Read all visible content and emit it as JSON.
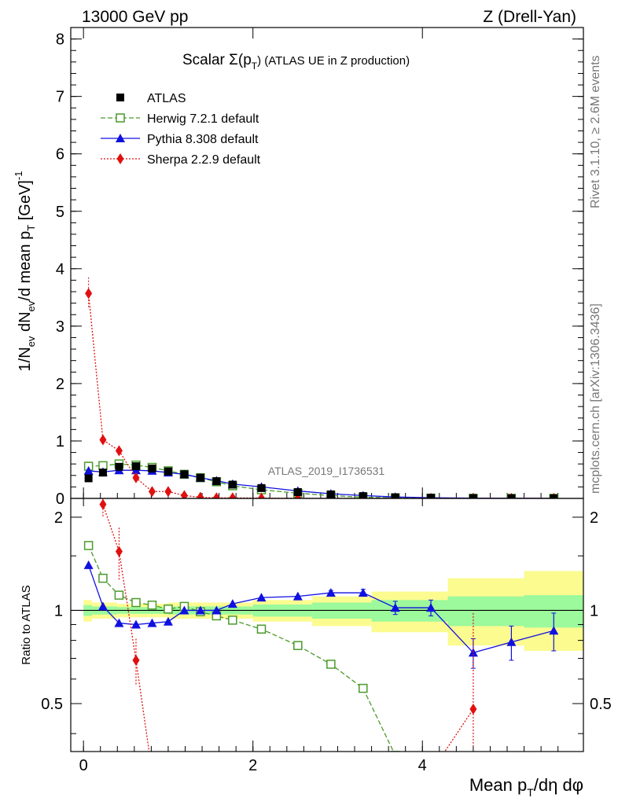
{
  "header": {
    "left": "13000 GeV pp",
    "right": "Z (Drell-Yan)"
  },
  "side": {
    "rivet": "Rivet 3.1.10, ≥ 2.6M events",
    "mcplots": "mcplots.cern.ch [arXiv:1306.3436]"
  },
  "plot_title": {
    "pre": "Scalar Σ(p",
    "sub": "T",
    "post": ") (ATLAS UE in Z production)"
  },
  "watermark": "ATLAS_2019_I1736531",
  "ylabel_main": "1/N_ev dN_ev/d mean p_T [GeV]^-1",
  "ylabel_ratio": "Ratio to ATLAS",
  "xlabel": "Mean p_T/dη dφ",
  "chart_data": {
    "type": "scatter",
    "xlim": [
      -0.15,
      5.9
    ],
    "main_ylim": [
      0,
      8.2
    ],
    "ratio_ylim": [
      0.35,
      2.3
    ],
    "ratio_yscale": "log",
    "x_ticks": [
      0,
      2,
      4
    ],
    "main_y_ticks": [
      0,
      1,
      2,
      3,
      4,
      5,
      6,
      7,
      8
    ],
    "ratio_y_ticks": [
      0.5,
      1,
      2
    ],
    "legend_position": "top-left",
    "band_inner": [
      [
        0.0,
        0.1,
        0.96,
        1.04
      ],
      [
        0.1,
        0.4,
        0.97,
        1.03
      ],
      [
        0.4,
        1.0,
        0.975,
        1.025
      ],
      [
        1.0,
        2.0,
        0.97,
        1.03
      ],
      [
        2.0,
        2.7,
        0.955,
        1.045
      ],
      [
        2.7,
        3.4,
        0.94,
        1.06
      ],
      [
        3.4,
        4.3,
        0.92,
        1.08
      ],
      [
        4.3,
        5.2,
        0.89,
        1.11
      ],
      [
        5.2,
        5.9,
        0.88,
        1.12
      ]
    ],
    "band_outer": [
      [
        0.0,
        0.1,
        0.92,
        1.08
      ],
      [
        0.1,
        0.4,
        0.94,
        1.06
      ],
      [
        0.4,
        1.0,
        0.95,
        1.05
      ],
      [
        1.0,
        2.0,
        0.94,
        1.06
      ],
      [
        2.0,
        2.7,
        0.92,
        1.08
      ],
      [
        2.7,
        3.4,
        0.89,
        1.11
      ],
      [
        3.4,
        4.3,
        0.85,
        1.15
      ],
      [
        4.3,
        5.2,
        0.77,
        1.27
      ],
      [
        5.2,
        5.9,
        0.74,
        1.34
      ]
    ],
    "series": [
      {
        "name": "ATLAS",
        "color": "#000000",
        "marker": "square-filled",
        "line": "none",
        "x": [
          0.06,
          0.23,
          0.42,
          0.62,
          0.81,
          1.0,
          1.19,
          1.38,
          1.57,
          1.76,
          2.1,
          2.53,
          2.92,
          3.3,
          3.68,
          4.1,
          4.6,
          5.05,
          5.55
        ],
        "y": [
          0.35,
          0.45,
          0.55,
          0.56,
          0.52,
          0.47,
          0.42,
          0.36,
          0.3,
          0.24,
          0.18,
          0.11,
          0.07,
          0.04,
          0.02,
          0.01,
          0.005,
          0.003,
          0.002
        ],
        "ratio": []
      },
      {
        "name": "Herwig 7.2.1 default",
        "color": "#4a9a2a",
        "marker": "square-open",
        "line": "dashed",
        "x": [
          0.06,
          0.23,
          0.42,
          0.62,
          0.81,
          1.0,
          1.19,
          1.38,
          1.57,
          1.76,
          2.1,
          2.53,
          2.92,
          3.3,
          3.68,
          4.1,
          4.6,
          5.05,
          5.55
        ],
        "y": [
          0.56,
          0.57,
          0.6,
          0.58,
          0.54,
          0.48,
          0.42,
          0.36,
          0.29,
          0.22,
          0.15,
          0.09,
          0.05,
          0.02,
          0.01,
          0.005,
          0.002,
          0.001,
          0.001
        ],
        "ratio": [
          1.62,
          1.27,
          1.12,
          1.06,
          1.04,
          1.01,
          1.03,
          0.99,
          0.96,
          0.93,
          0.87,
          0.77,
          0.67,
          0.56,
          0.34,
          null,
          null,
          null,
          null
        ]
      },
      {
        "name": "Pythia 8.308 default",
        "color": "#1010e0",
        "marker": "triangle-filled",
        "line": "solid",
        "x": [
          0.06,
          0.23,
          0.42,
          0.62,
          0.81,
          1.0,
          1.19,
          1.38,
          1.57,
          1.76,
          2.1,
          2.53,
          2.92,
          3.3,
          3.68,
          4.1,
          4.6,
          5.05,
          5.55
        ],
        "y": [
          0.48,
          0.46,
          0.49,
          0.49,
          0.48,
          0.45,
          0.42,
          0.36,
          0.31,
          0.25,
          0.2,
          0.13,
          0.08,
          0.05,
          0.025,
          0.012,
          0.004,
          0.003,
          0.002
        ],
        "ratio": [
          1.4,
          1.03,
          0.91,
          0.9,
          0.91,
          0.92,
          1.0,
          1.0,
          1.0,
          1.05,
          1.1,
          1.11,
          1.14,
          1.14,
          1.02,
          1.02,
          0.73,
          0.79,
          0.86
        ],
        "ratio_err": [
          0,
          0,
          0,
          0,
          0,
          0,
          0,
          0,
          0,
          0,
          0,
          0,
          0.02,
          0.03,
          0.05,
          0.06,
          0.08,
          0.1,
          0.12
        ]
      },
      {
        "name": "Sherpa 2.2.9 default",
        "color": "#e01010",
        "marker": "diamond-filled",
        "line": "dotted",
        "x": [
          0.06,
          0.23,
          0.42,
          0.62,
          0.81,
          1.0,
          1.19,
          1.38,
          1.57,
          1.76,
          2.1,
          2.53,
          2.92,
          3.3,
          3.68,
          4.1,
          4.6,
          5.05,
          5.55
        ],
        "y": [
          3.57,
          1.02,
          0.83,
          0.36,
          0.12,
          0.12,
          0.05,
          0.02,
          0.01,
          0.01,
          0.005,
          0.003,
          0.001,
          0.001,
          0.001,
          0.001,
          0.002,
          0.001,
          0.001
        ],
        "ratio": [
          null,
          2.2,
          1.55,
          0.69,
          0.3,
          null,
          null,
          null,
          null,
          null,
          null,
          null,
          null,
          null,
          null,
          0.3,
          0.48,
          null,
          null
        ],
        "ratio_err": [
          0,
          0.2,
          0.3,
          0.12,
          0,
          0,
          0,
          0,
          0,
          0,
          0,
          0,
          0,
          0,
          0,
          0,
          0.5,
          0,
          0
        ]
      }
    ]
  }
}
